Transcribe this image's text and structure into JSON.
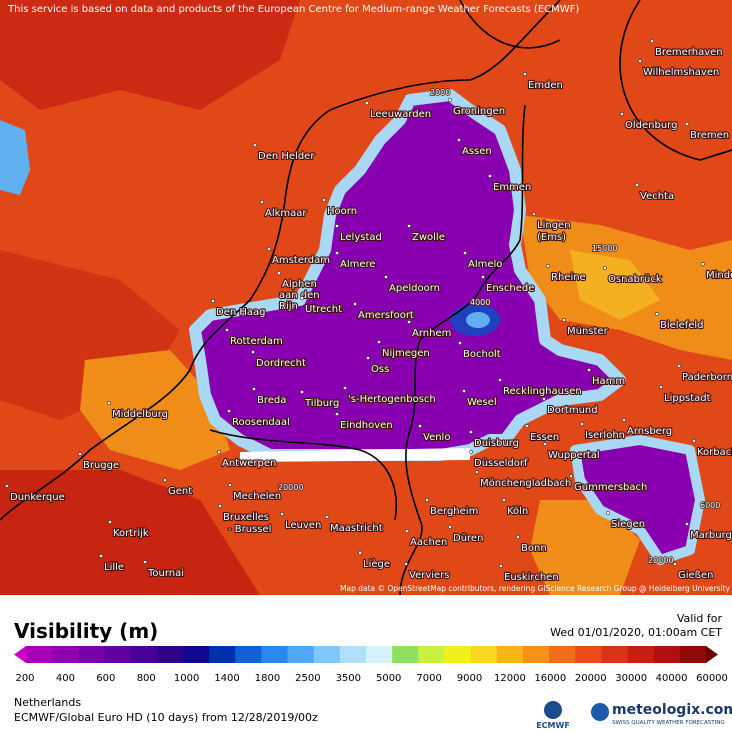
{
  "header": {
    "notice": "This service is based on data and products of the European Centre for Medium-range Weather Forecasts (ECMWF)"
  },
  "map": {
    "attribution": "Map data © OpenStreetMap contributors, rendering GIScience Research Group @ Heidelberg University",
    "cities": [
      "Bremerhaven",
      "Wilhelmshaven",
      "Emden",
      "Leeuwarden",
      "Groningen",
      "Oldenburg",
      "Bremen",
      "Den Helder",
      "Assen",
      "Emmen",
      "Vechta",
      "Alkmaar",
      "Hoorn",
      "Lelystad",
      "Zwolle",
      "Lingen",
      "(Ems)",
      "Amsterdam",
      "Almere",
      "Almelo",
      "Rheine",
      "Osnabrück",
      "Minden",
      "Alphen",
      "aan den",
      "Rijn",
      "Apeldoorn",
      "Enschede",
      "Den Haag",
      "Utrecht",
      "Amersfoort",
      "Arnhem",
      "Münster",
      "Bielefeld",
      "Rotterdam",
      "Dordrecht",
      "Nijmegen",
      "Bocholt",
      "Oss",
      "Recklinghausen",
      "Hamm",
      "Paderborn",
      "Lippstadt",
      "Middelburg",
      "Breda",
      "Tilburg",
      "'s-Hertogenbosch",
      "Wesel",
      "Dortmund",
      "Roosendaal",
      "Eindhoven",
      "Essen",
      "Iserlohn",
      "Arnsberg",
      "Korbach",
      "Brugge",
      "Antwerpen",
      "Venlo",
      "Duisburg",
      "Düsseldorf",
      "Wuppertal",
      "Gent",
      "Mechelen",
      "Mönchengladbach",
      "Gummersbach",
      "Dunkerque",
      "Kortrijk",
      "Bruxelles",
      "- Brussel",
      "Leuven",
      "Maastricht",
      "Bergheim",
      "Köln",
      "Siegen",
      "Marburg",
      "Aachen",
      "Düren",
      "Bonn",
      "Liège",
      "Lille",
      "Tournai",
      "Verviers",
      "Euskirchen",
      "Gießen"
    ],
    "contour_labels": [
      "15000",
      "20000",
      "6000",
      "2000",
      "4000",
      "20000"
    ]
  },
  "legend": {
    "title": "Visibility (m)",
    "labels": [
      "200",
      "400",
      "600",
      "800",
      "1000",
      "1400",
      "1800",
      "2500",
      "3500",
      "5000",
      "7000",
      "9000",
      "12000",
      "16000",
      "20000",
      "30000",
      "40000",
      "60000"
    ],
    "colors": [
      "#c800c8",
      "#a800b8",
      "#9000b0",
      "#7800a8",
      "#6000a0",
      "#480098",
      "#300088",
      "#100890",
      "#0030b0",
      "#1060d8",
      "#2888f0",
      "#50a8f8",
      "#80c8fa",
      "#b0e0fc",
      "#d8f2fc",
      "#90e060",
      "#c8f040",
      "#f0f020",
      "#f8d820",
      "#f8b418",
      "#f89018",
      "#f06c18",
      "#e84c18",
      "#d83418",
      "#c82010",
      "#b01010",
      "#900808",
      "#6c0000"
    ]
  },
  "valid": {
    "label": "Valid for",
    "time": "Wed 01/01/2020, 01:00am CET"
  },
  "footer": {
    "region": "Netherlands",
    "model": "ECMWF/Global Euro HD (10 days) from 12/28/2019/00z"
  },
  "logos": {
    "ecmwf": "ECMWF",
    "brand": "meteologix.com",
    "tagline": "SWISS QUALITY WEATHER FORECASTING"
  }
}
